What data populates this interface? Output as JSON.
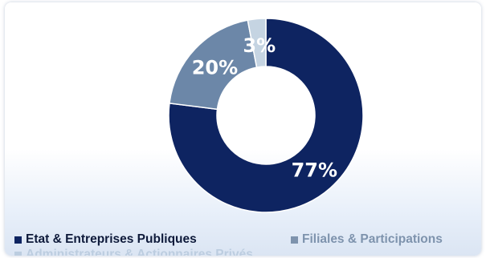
{
  "chart_data": {
    "type": "pie",
    "variant": "donut",
    "categories": [
      "Etat & Entreprises Publiques",
      "Filiales & Participations",
      "Administrateurs & Actionnaires Privés"
    ],
    "values": [
      77,
      20,
      3
    ],
    "labels": [
      "77%",
      "20%",
      "3%"
    ],
    "colors": [
      "#0e2461",
      "#6c87a8",
      "#c5d4e2"
    ],
    "legend_position": "bottom",
    "title": ""
  },
  "legend": {
    "items": [
      {
        "label": "Etat & Entreprises Publiques",
        "color": "#0e2461",
        "text_color": "#0e1a3a"
      },
      {
        "label": "Filiales & Participations",
        "color": "#7e93ad",
        "text_color": "#7e93ad"
      },
      {
        "label": "Administrateurs & Actionnaires Privés",
        "color": "#bccde0",
        "text_color": "#bccde0"
      }
    ]
  }
}
